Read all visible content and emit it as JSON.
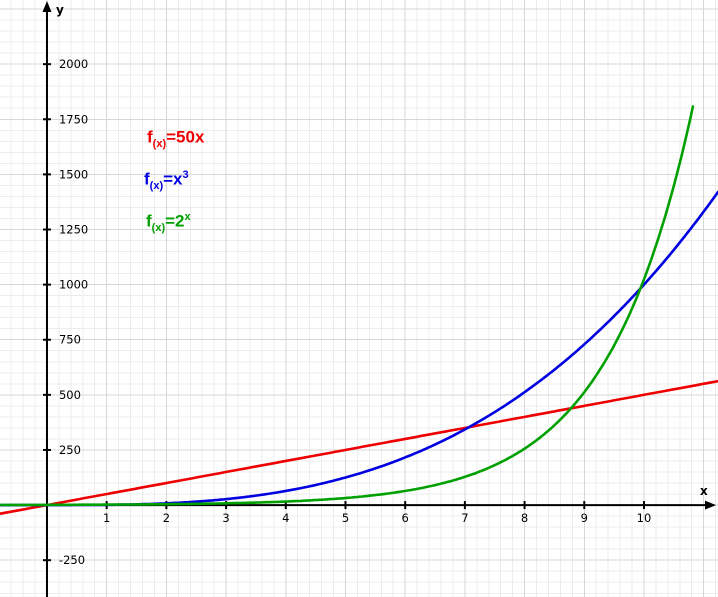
{
  "chart_data": {
    "type": "line",
    "title": "",
    "xlabel": "x",
    "ylabel": "y",
    "xlim": [
      -0.787,
      11.24
    ],
    "ylim": [
      -417,
      2291
    ],
    "x_ticks": [
      1,
      2,
      3,
      4,
      5,
      6,
      7,
      8,
      9,
      10
    ],
    "y_ticks": [
      2000,
      1750,
      1500,
      1250,
      1000,
      750,
      500,
      250,
      -250
    ],
    "grid": "on",
    "minor_step": {
      "x": 0.2,
      "y": 50
    },
    "major_step": {
      "x": 1,
      "y": 250
    },
    "legend_position": "top-left-inside",
    "colors": {
      "grid_minor": "#ececec",
      "grid_major": "#d7d7d7",
      "axis": "#000000",
      "tick_label": "#000000"
    },
    "series": [
      {
        "name": "f(x)=50x",
        "formula": "50x",
        "color": "#ee0000",
        "domain": [
          -0.787,
          11.24
        ],
        "legend": {
          "prefix": "f",
          "sub": "(x)",
          "body": "=50x",
          "sup": ""
        },
        "sample_points": {
          "x": [
            0,
            1,
            2,
            3,
            4,
            5,
            6,
            7,
            8,
            9,
            10
          ],
          "y": [
            0,
            50,
            100,
            150,
            200,
            250,
            300,
            350,
            400,
            450,
            500
          ]
        }
      },
      {
        "name": "f(x)=x^3",
        "formula": "x^3",
        "color": "#0000e0",
        "domain": [
          -0.787,
          11.24
        ],
        "legend": {
          "prefix": "f",
          "sub": "(x)",
          "body": "=x",
          "sup": "3"
        },
        "sample_points": {
          "x": [
            0,
            1,
            2,
            3,
            4,
            5,
            6,
            7,
            8,
            9,
            10
          ],
          "y": [
            0,
            1,
            8,
            27,
            64,
            125,
            216,
            343,
            512,
            729,
            1000
          ]
        }
      },
      {
        "name": "f(x)=2^x",
        "formula": "2^x",
        "color": "#00a000",
        "domain": [
          -0.787,
          10.82
        ],
        "legend": {
          "prefix": "f",
          "sub": "(x)",
          "body": "=2",
          "sup": "x"
        },
        "sample_points": {
          "x": [
            0,
            1,
            2,
            3,
            4,
            5,
            6,
            7,
            8,
            9,
            10
          ],
          "y": [
            1,
            2,
            4,
            8,
            16,
            32,
            64,
            128,
            256,
            512,
            1024
          ]
        }
      }
    ]
  }
}
